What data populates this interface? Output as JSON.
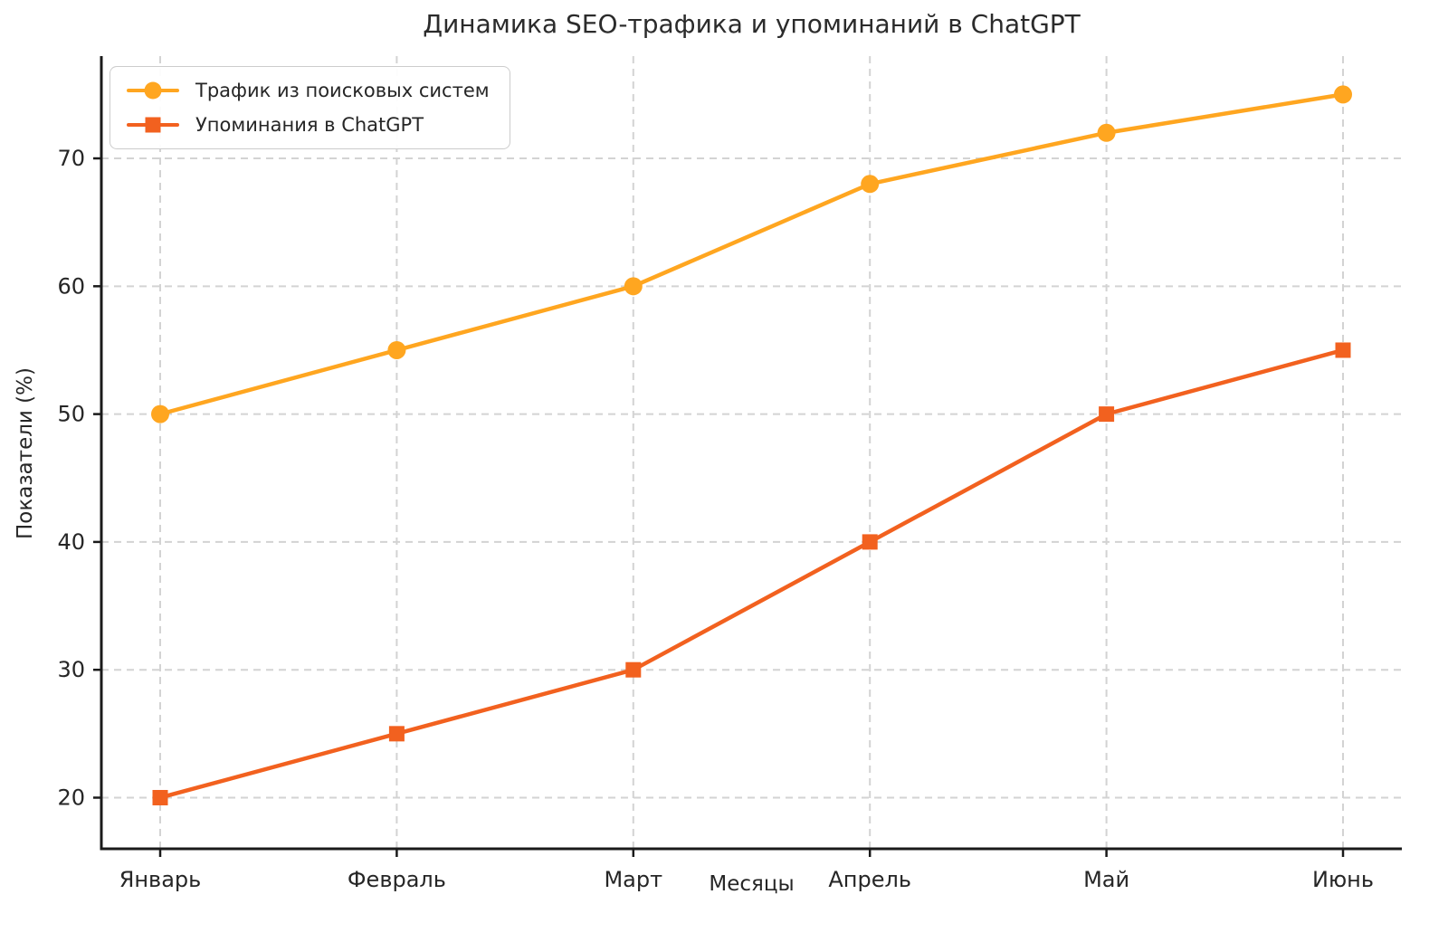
{
  "chart_data": {
    "type": "line",
    "title": "Динамика SEO-трафика и упоминаний в ChatGPT",
    "xlabel": "Месяцы",
    "ylabel": "Показатели (%)",
    "categories": [
      "Январь",
      "Февраль",
      "Март",
      "Апрель",
      "Май",
      "Июнь"
    ],
    "series": [
      {
        "name": "Трафик из поисковых систем",
        "values": [
          50,
          55,
          60,
          68,
          72,
          75
        ],
        "color": "#FFA620",
        "marker": "circle"
      },
      {
        "name": "Упоминания в ChatGPT",
        "values": [
          20,
          25,
          30,
          40,
          50,
          55
        ],
        "color": "#F2611F",
        "marker": "square"
      }
    ],
    "ylim": [
      16,
      78
    ],
    "yticks": [
      20,
      30,
      40,
      50,
      60,
      70
    ],
    "grid": true,
    "grid_style": "dashed",
    "legend_position": "upper-left",
    "colors": {
      "axis": "#1a1a1a",
      "grid": "#d3d3d3",
      "text": "#262626",
      "background": "#ffffff"
    }
  }
}
